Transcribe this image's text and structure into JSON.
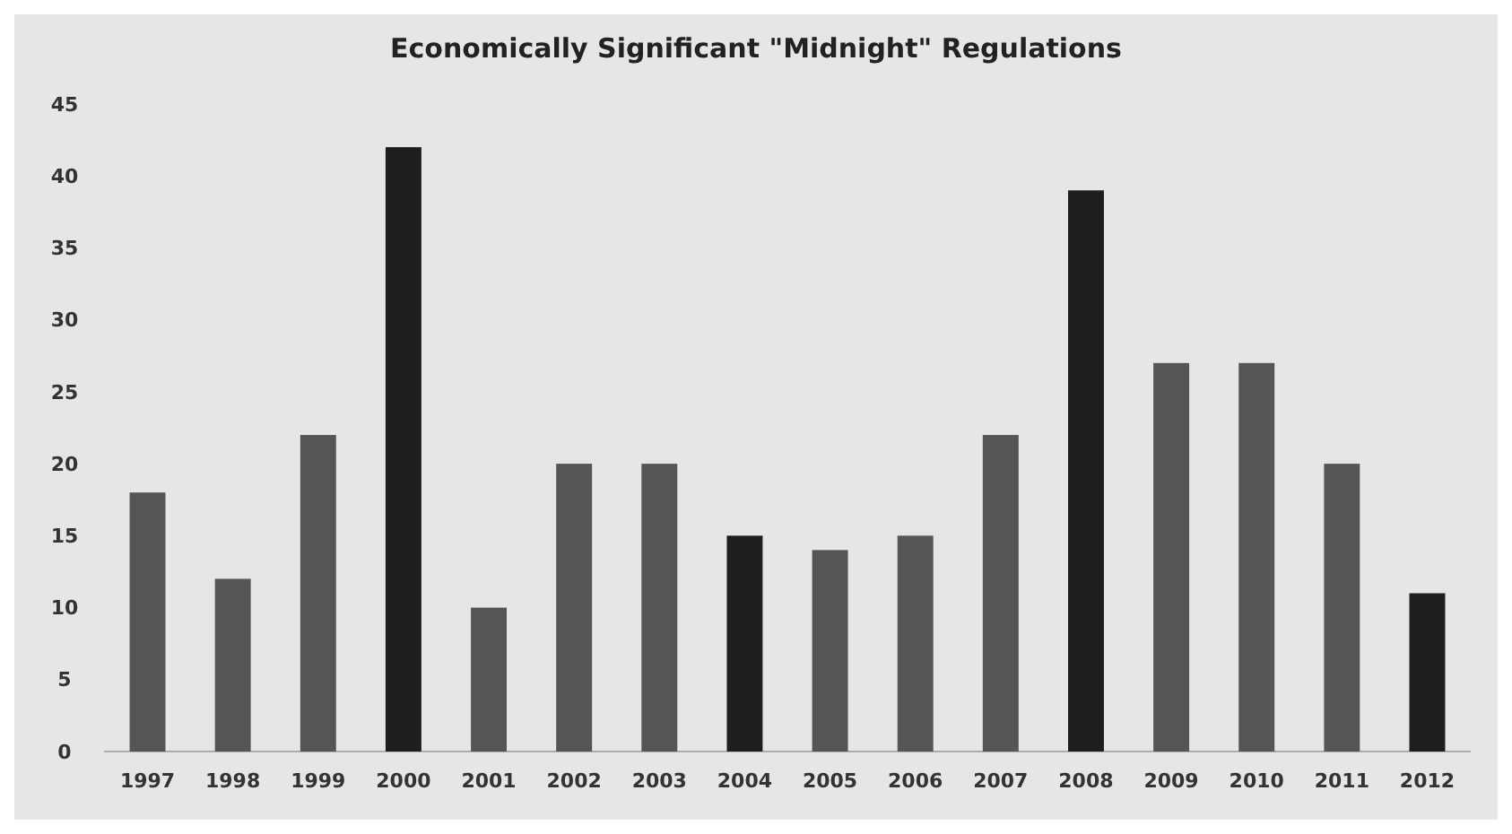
{
  "chart_data": {
    "type": "bar",
    "title": "Economically Significant \"Midnight\" Regulations",
    "categories": [
      "1997",
      "1998",
      "1999",
      "2000",
      "2001",
      "2002",
      "2003",
      "2004",
      "2005",
      "2006",
      "2007",
      "2008",
      "2009",
      "2010",
      "2011",
      "2012"
    ],
    "values": [
      18,
      12,
      22,
      42,
      10,
      20,
      20,
      15,
      14,
      15,
      22,
      39,
      27,
      27,
      20,
      11
    ],
    "colors": [
      "#555555",
      "#555555",
      "#555555",
      "#1e1e1e",
      "#555555",
      "#555555",
      "#555555",
      "#1e1e1e",
      "#555555",
      "#555555",
      "#555555",
      "#1e1e1e",
      "#555555",
      "#555555",
      "#555555",
      "#1e1e1e"
    ],
    "ylim": [
      0,
      45
    ],
    "yticks": [
      0,
      5,
      10,
      15,
      20,
      25,
      30,
      35,
      40,
      45
    ]
  }
}
